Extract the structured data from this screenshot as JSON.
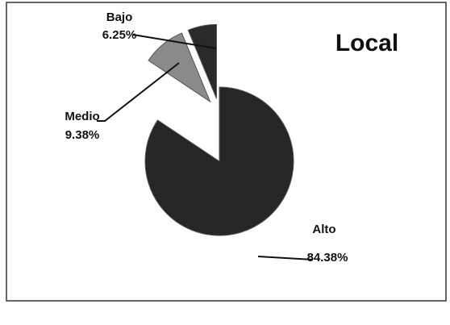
{
  "chart_data": {
    "type": "pie",
    "title": "Local",
    "categories": [
      "Bajo",
      "Medio",
      "Alto"
    ],
    "values": [
      6.25,
      9.38,
      84.38
    ],
    "value_labels": [
      "6.25%",
      "9.38%",
      "84.38%"
    ],
    "colors": [
      "#2a2a2a",
      "#8a8a8a",
      "#262626"
    ]
  }
}
